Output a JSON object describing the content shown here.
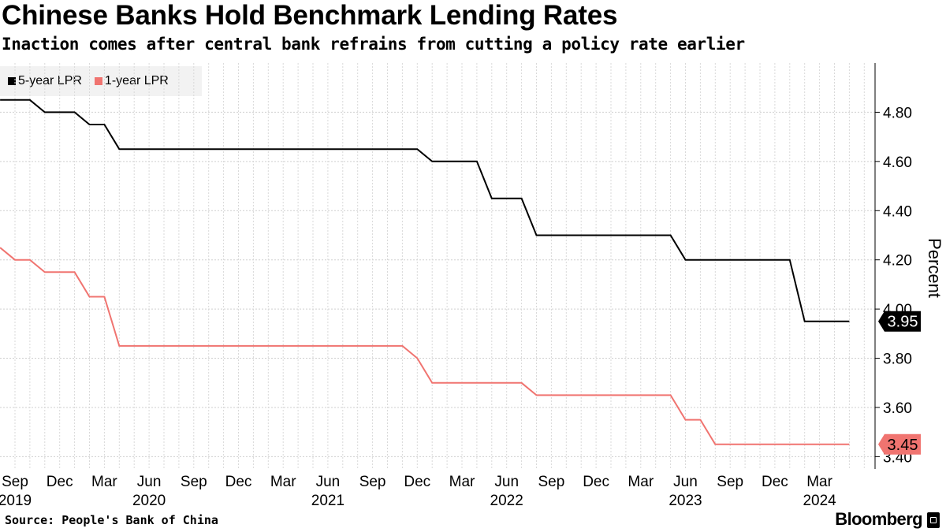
{
  "header": {
    "title": "Chinese Banks Hold Benchmark Lending Rates",
    "subtitle": "Inaction comes after central bank refrains from cutting a policy rate earlier"
  },
  "footer": {
    "source": "Source: People's Bank of China",
    "brand": "Bloomberg",
    "brand_icon": "bloomberg-terminal-icon"
  },
  "chart_data": {
    "type": "line",
    "title": "Chinese Banks Hold Benchmark Lending Rates",
    "subtitle": "Inaction comes after central bank refrains from cutting a policy rate earlier",
    "ylabel": "Percent",
    "xlabel": "",
    "ylim": [
      3.35,
      5.0
    ],
    "y_axis_side": "right",
    "yticks": [
      "3.40",
      "3.60",
      "3.80",
      "4.00",
      "4.20",
      "4.40",
      "4.60",
      "4.80"
    ],
    "grid": true,
    "legend_position": "top-left",
    "x_ticks": [
      {
        "month": "Sep",
        "year": "2019"
      },
      {
        "month": "Dec",
        "year": ""
      },
      {
        "month": "Mar",
        "year": ""
      },
      {
        "month": "Jun",
        "year": "2020"
      },
      {
        "month": "Sep",
        "year": ""
      },
      {
        "month": "Dec",
        "year": ""
      },
      {
        "month": "Mar",
        "year": ""
      },
      {
        "month": "Jun",
        "year": "2021"
      },
      {
        "month": "Sep",
        "year": ""
      },
      {
        "month": "Dec",
        "year": ""
      },
      {
        "month": "Mar",
        "year": ""
      },
      {
        "month": "Jun",
        "year": "2022"
      },
      {
        "month": "Sep",
        "year": ""
      },
      {
        "month": "Dec",
        "year": ""
      },
      {
        "month": "Mar",
        "year": ""
      },
      {
        "month": "Jun",
        "year": "2023"
      },
      {
        "month": "Sep",
        "year": ""
      },
      {
        "month": "Dec",
        "year": ""
      },
      {
        "month": "Mar",
        "year": "2024"
      }
    ],
    "series": [
      {
        "name": "5-year LPR",
        "color": "#000000",
        "end_label": "3.95",
        "points": [
          [
            "2019-08",
            4.85
          ],
          [
            "2019-10",
            4.85
          ],
          [
            "2019-11",
            4.8
          ],
          [
            "2020-01",
            4.8
          ],
          [
            "2020-02",
            4.75
          ],
          [
            "2020-03",
            4.75
          ],
          [
            "2020-04",
            4.65
          ],
          [
            "2021-12",
            4.65
          ],
          [
            "2022-01",
            4.6
          ],
          [
            "2022-04",
            4.6
          ],
          [
            "2022-05",
            4.45
          ],
          [
            "2022-07",
            4.45
          ],
          [
            "2022-08",
            4.3
          ],
          [
            "2023-05",
            4.3
          ],
          [
            "2023-06",
            4.2
          ],
          [
            "2024-01",
            4.2
          ],
          [
            "2024-02",
            3.95
          ],
          [
            "2024-05",
            3.95
          ]
        ]
      },
      {
        "name": "1-year LPR",
        "color": "#f07470",
        "end_label": "3.45",
        "points": [
          [
            "2019-08",
            4.25
          ],
          [
            "2019-09",
            4.2
          ],
          [
            "2019-10",
            4.2
          ],
          [
            "2019-11",
            4.15
          ],
          [
            "2020-01",
            4.15
          ],
          [
            "2020-02",
            4.05
          ],
          [
            "2020-03",
            4.05
          ],
          [
            "2020-04",
            3.85
          ],
          [
            "2021-11",
            3.85
          ],
          [
            "2021-12",
            3.8
          ],
          [
            "2022-01",
            3.7
          ],
          [
            "2022-07",
            3.7
          ],
          [
            "2022-08",
            3.65
          ],
          [
            "2023-05",
            3.65
          ],
          [
            "2023-06",
            3.55
          ],
          [
            "2023-07",
            3.55
          ],
          [
            "2023-08",
            3.45
          ],
          [
            "2024-05",
            3.45
          ]
        ]
      }
    ]
  }
}
